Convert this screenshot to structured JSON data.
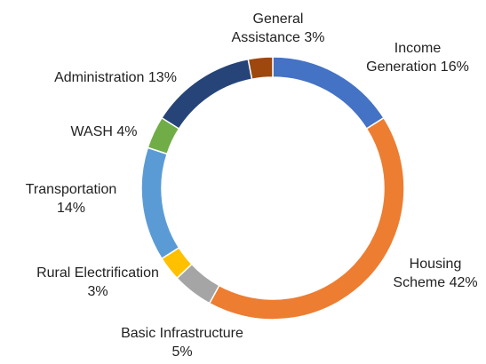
{
  "chart_data": {
    "type": "donut",
    "categories": [
      "Income Generation",
      "Housing Scheme",
      "Basic Infrastructure",
      "Rural Electrification",
      "Transportation",
      "WASH",
      "Administration",
      "General Assistance"
    ],
    "values": [
      16,
      42,
      5,
      3,
      14,
      4,
      13,
      3
    ],
    "value_labels": [
      "16%",
      "42%",
      "5%",
      "3%",
      "14%",
      "4%",
      "13%",
      "3%"
    ],
    "colors": [
      "#4472c4",
      "#ed7d31",
      "#a5a5a5",
      "#ffc000",
      "#5b9bd5",
      "#70ad47",
      "#264478",
      "#9e480e"
    ]
  }
}
